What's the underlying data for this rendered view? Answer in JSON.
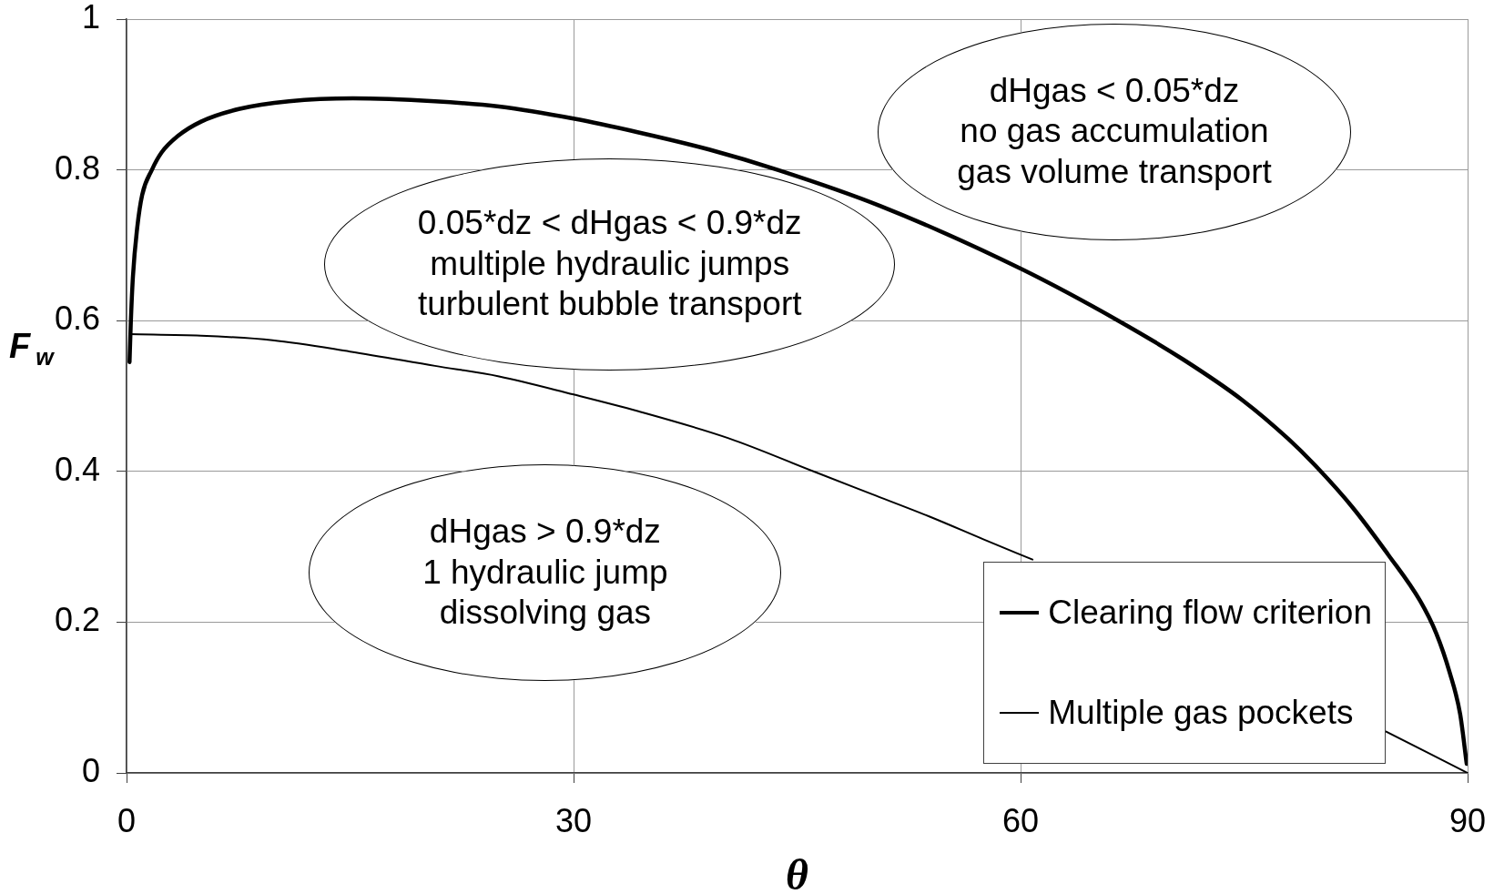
{
  "chart_data": {
    "type": "line",
    "xlabel": "θ",
    "ylabel": "F$_{w}$",
    "xlim": [
      0,
      90
    ],
    "xticks": [
      0,
      30,
      60,
      90
    ],
    "ylim": [
      0,
      1
    ],
    "yticks": [
      0,
      0.2,
      0.4,
      0.6,
      0.8,
      1
    ],
    "grid": true,
    "legend": "bottom right",
    "marker": "none",
    "annotations": [
      "dHgas < 0.05*dz\nno gas accumulation\ngas volume transport",
      "0.05*dz < dHgas < 0.9*dz\nmultiple hydraulic jumps\nturbulent bubble transport",
      "dHgas > 0.9*dz\n1 hydraulic jump\ndissolving gas"
    ],
    "series": [
      {
        "name": "Clearing flow criterion",
        "color": "#000000",
        "x": [
          0.2,
          0.28,
          0.43,
          0.72,
          1.05,
          1.7,
          2.35,
          3.45,
          5,
          7.6,
          10.9,
          15.2,
          20.7,
          25,
          30,
          34.3,
          39.1,
          43.7,
          50.6,
          60,
          66.55,
          70.95,
          74.92,
          77.97,
          79.96,
          82.25,
          84.69,
          86.82,
          87.9,
          88.8,
          89.5,
          89.94
        ],
        "values": [
          0.545,
          0.594,
          0.659,
          0.724,
          0.767,
          0.8,
          0.823,
          0.845,
          0.864,
          0.881,
          0.891,
          0.895,
          0.891,
          0.884,
          0.868,
          0.85,
          0.827,
          0.8,
          0.752,
          0.669,
          0.6,
          0.548,
          0.494,
          0.443,
          0.404,
          0.353,
          0.289,
          0.228,
          0.185,
          0.133,
          0.078,
          0.012
        ]
      },
      {
        "name": "Multiple gas pockets",
        "color": "#000000",
        "x": [
          0.2,
          5,
          9.8,
          15,
          20.7,
          25,
          30,
          34.3,
          40.4,
          46.1,
          50,
          53.9,
          57.5,
          60.8,
          73,
          84.5,
          90
        ],
        "values": [
          0.582,
          0.58,
          0.574,
          0.559,
          0.54,
          0.526,
          0.502,
          0.48,
          0.444,
          0.4,
          0.37,
          0.34,
          0.31,
          0.283,
          null,
          0.055,
          0
        ]
      }
    ]
  }
}
